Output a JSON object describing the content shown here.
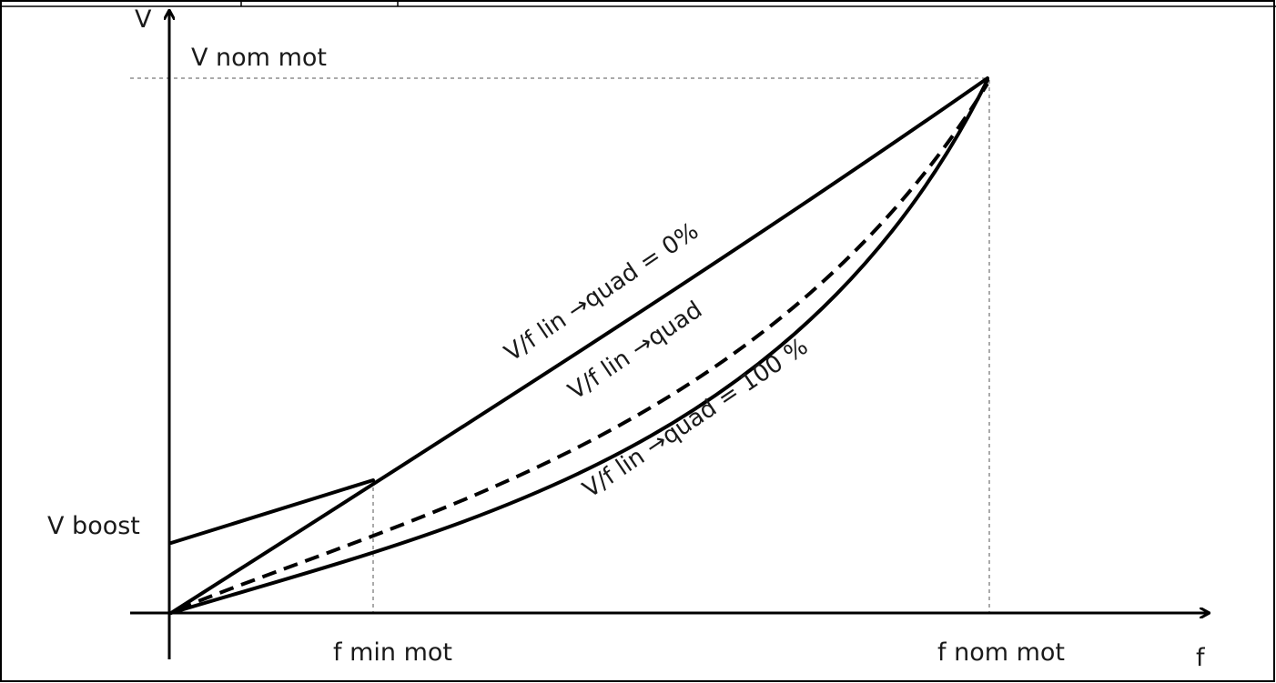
{
  "axes": {
    "x_label": "f",
    "y_label": "V"
  },
  "levels": {
    "v_nom": "V nom mot",
    "v_boost": "V boost",
    "f_min": "f min mot",
    "f_nom": "f nom mot"
  },
  "curves": {
    "linear": "V/f lin →quad = 0%",
    "mid": "V/f lin →quad",
    "quadratic": "V/f lin →quad = 100 %"
  }
}
